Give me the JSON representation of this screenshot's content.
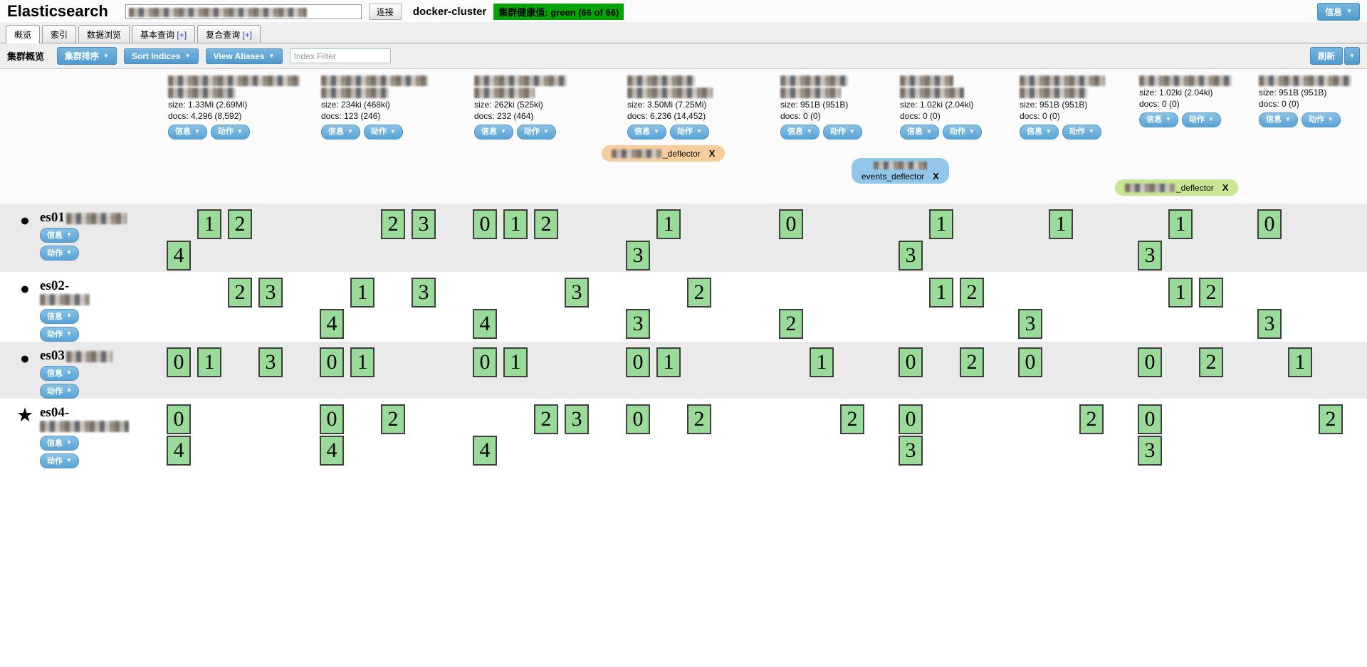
{
  "header": {
    "app_title": "Elasticsearch",
    "connect_button": "连接",
    "cluster_name": "docker-cluster",
    "health_badge": "集群健康值: green (66 of 66)",
    "info_button": "信息"
  },
  "tabs": {
    "items": [
      {
        "label": "概览",
        "active": true
      },
      {
        "label": "索引",
        "active": false
      },
      {
        "label": "数据浏览",
        "active": false
      },
      {
        "label": "基本查询",
        "plus": " [+]",
        "active": false
      },
      {
        "label": "复合查询",
        "plus": " [+]",
        "active": false
      }
    ]
  },
  "toolbar": {
    "section_label": "集群概览",
    "cluster_sort_button": "集群排序",
    "sort_indices_button": "Sort Indices",
    "view_aliases_button": "View Aliases",
    "index_filter_placeholder": "Index Filter",
    "refresh_button": "刷新"
  },
  "buttons": {
    "info": "信息",
    "actions": "动作"
  },
  "colors": {
    "health_green": "#00A400",
    "shard_green": "#9ADB9A",
    "alias_orange": "#F8CD9E",
    "alias_blue": "#92C7EA",
    "alias_green": "#C7E795"
  },
  "indices": [
    {
      "name_redacted": true,
      "size": "size: 1.33Mi (2.69Mi)",
      "docs": "docs: 4,296 (8,592)"
    },
    {
      "name_redacted": true,
      "size": "size: 234ki (468ki)",
      "docs": "docs: 123 (246)"
    },
    {
      "name_redacted": true,
      "size": "size: 262ki (525ki)",
      "docs": "docs: 232 (464)"
    },
    {
      "name_redacted": true,
      "size": "size: 3.50Mi (7.25Mi)",
      "docs": "docs: 6,236 (14,452)"
    },
    {
      "name_redacted": true,
      "size": "size: 951B (951B)",
      "docs": "docs: 0 (0)"
    },
    {
      "name_redacted": true,
      "size": "size: 1.02ki (2.04ki)",
      "docs": "docs: 0 (0)"
    },
    {
      "name_redacted": true,
      "size": "size: 951B (951B)",
      "docs": "docs: 0 (0)"
    },
    {
      "name_redacted": true,
      "size": "size: 1.02ki (2.04ki)",
      "docs": "docs: 0 (0)"
    },
    {
      "name_redacted": true,
      "size": "size: 951B (951B)",
      "docs": "docs: 0 (0)"
    }
  ],
  "aliases": [
    {
      "label": "_deflector",
      "close": "X",
      "color": "orange",
      "prefix_redacted": true
    },
    {
      "label": "events_deflector",
      "close": "X",
      "color": "blue",
      "prefix_redacted": true
    },
    {
      "label": "_deflector",
      "close": "X",
      "color": "green",
      "prefix_redacted": true
    }
  ],
  "nodes": [
    {
      "name": "es01",
      "suffix_redacted": true,
      "marker": "circle-icon",
      "cells": [
        [
          [
            null,
            1,
            2
          ],
          [
            4
          ]
        ],
        [
          [
            null,
            null,
            2,
            3
          ]
        ],
        [
          [
            0,
            1,
            2
          ]
        ],
        [
          [
            null,
            1
          ],
          [
            3
          ]
        ],
        [
          [
            0
          ]
        ],
        [
          [
            null,
            1
          ],
          [
            3
          ]
        ],
        [
          [
            null,
            1
          ]
        ],
        [
          [
            null,
            1
          ],
          [
            3
          ]
        ],
        [
          [
            0
          ]
        ]
      ]
    },
    {
      "name": "es02-",
      "suffix_redacted": true,
      "marker": "circle-icon",
      "cells": [
        [
          [
            null,
            null,
            2,
            3
          ]
        ],
        [
          [
            null,
            1,
            null,
            3
          ],
          [
            4
          ]
        ],
        [
          [
            null,
            null,
            null,
            3
          ],
          [
            4
          ]
        ],
        [
          [
            null,
            null,
            2
          ],
          [
            3
          ]
        ],
        [
          [],
          [
            2
          ]
        ],
        [
          [
            null,
            1,
            2
          ]
        ],
        [
          [],
          [
            3
          ]
        ],
        [
          [
            null,
            1,
            2
          ]
        ],
        [
          [],
          [
            3
          ]
        ]
      ]
    },
    {
      "name": "es03",
      "suffix_redacted": true,
      "marker": "circle-icon",
      "cells": [
        [
          [
            0,
            1,
            null,
            3
          ]
        ],
        [
          [
            0,
            1
          ]
        ],
        [
          [
            0,
            1
          ]
        ],
        [
          [
            0,
            1
          ]
        ],
        [
          [
            null,
            1
          ]
        ],
        [
          [
            0,
            null,
            2
          ]
        ],
        [
          [
            0
          ]
        ],
        [
          [
            0,
            null,
            2
          ]
        ],
        [
          [
            null,
            1
          ]
        ]
      ]
    },
    {
      "name": "es04-",
      "suffix_redacted": true,
      "marker": "star-icon",
      "cells": [
        [
          [
            0
          ],
          [
            4
          ]
        ],
        [
          [
            0,
            null,
            2
          ],
          [
            4
          ]
        ],
        [
          [
            null,
            null,
            2,
            3
          ],
          [
            4
          ]
        ],
        [
          [
            0,
            null,
            2
          ]
        ],
        [
          [
            null,
            null,
            2
          ]
        ],
        [
          [
            0
          ],
          [
            3
          ]
        ],
        [
          [
            null,
            null,
            2
          ]
        ],
        [
          [
            0
          ],
          [
            3
          ]
        ],
        [
          [
            null,
            null,
            2
          ]
        ]
      ]
    }
  ]
}
